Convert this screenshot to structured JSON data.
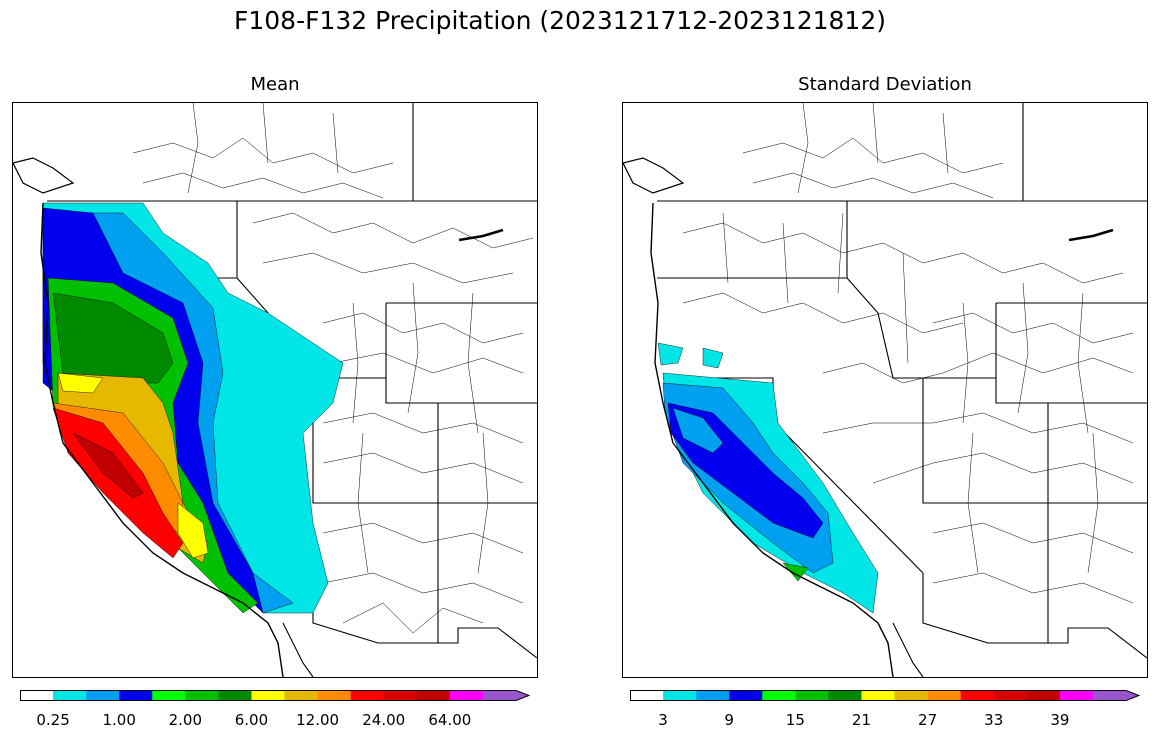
{
  "title": "F108-F132 Precipitation (2023121712-2023121812)",
  "panels": [
    {
      "title": "Mean",
      "colorbar": {
        "colors": [
          "#ffffff",
          "#00e5e5",
          "#00a0f0",
          "#0000ee",
          "#00ff00",
          "#00c000",
          "#008a00",
          "#ffff00",
          "#e6b800",
          "#ff8c00",
          "#ff0000",
          "#d60000",
          "#c00000",
          "#ff00ff",
          "#9955cc"
        ],
        "tick_labels": [
          "0.25",
          "1.00",
          "2.00",
          "6.00",
          "12.00",
          "24.00",
          "64.00"
        ],
        "extend": "max"
      }
    },
    {
      "title": "Standard Deviation",
      "colorbar": {
        "colors": [
          "#ffffff",
          "#00e5e5",
          "#00a0f0",
          "#0000ee",
          "#00ff00",
          "#00c000",
          "#008a00",
          "#ffff00",
          "#e6b800",
          "#ff8c00",
          "#ff0000",
          "#d60000",
          "#c00000",
          "#ff00ff",
          "#9955cc"
        ],
        "tick_labels": [
          "3",
          "9",
          "15",
          "21",
          "27",
          "33",
          "39"
        ],
        "extend": "max"
      }
    }
  ]
}
